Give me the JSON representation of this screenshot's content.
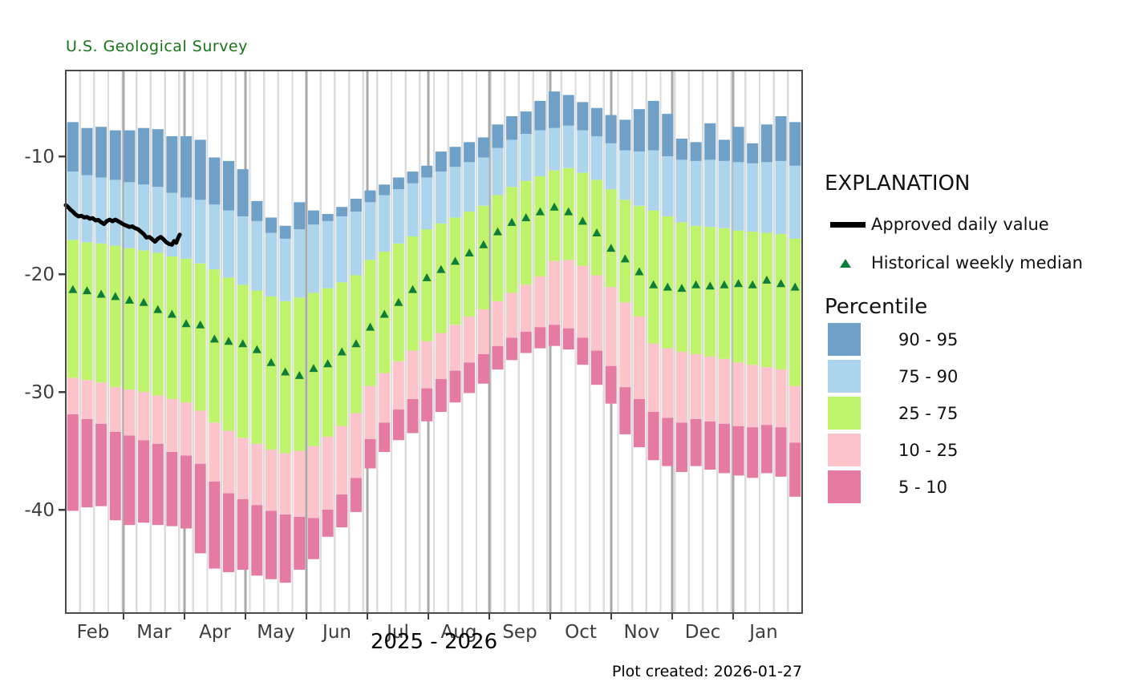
{
  "header": {
    "title": "U.S. Geological Survey"
  },
  "footer": {
    "created": "Plot created: 2026-01-27"
  },
  "axes": {
    "x_title": "2025 - 2026",
    "months": [
      "Feb",
      "Mar",
      "Apr",
      "May",
      "Jun",
      "Jul",
      "Aug",
      "Sep",
      "Oct",
      "Nov",
      "Dec",
      "Jan"
    ],
    "y_ticks": [
      -10,
      -20,
      -30,
      -40
    ]
  },
  "legend": {
    "title": "EXPLANATION",
    "approved_label": "Approved daily value",
    "median_label": "Historical weekly median",
    "percentile_title": "Percentile",
    "bands": [
      {
        "label": "90 - 95",
        "color": "#6EA0C8"
      },
      {
        "label": "75 - 90",
        "color": "#ACD4EC"
      },
      {
        "label": "25 - 75",
        "color": "#BFF36C"
      },
      {
        "label": "10 - 25",
        "color": "#FCC3CB"
      },
      {
        "label": "5 - 10",
        "color": "#E57BA3"
      }
    ]
  },
  "colors": {
    "band_90_95": "#6EA0C8",
    "band_75_90": "#ACD4EC",
    "band_25_75": "#BFF36C",
    "band_10_25": "#FCC3CB",
    "band_5_10": "#E57BA3",
    "median_triangle": "#0E7D3A",
    "approved_line": "#000000",
    "title_green": "#157415",
    "axis_text": "#3D3D3D",
    "grid_week": "#DCDCDC",
    "grid_month": "#A9A9A9",
    "plot_border": "#4A4A4A"
  },
  "chart_data": {
    "type": "bar",
    "subtype": "stacked-weekly-percentile-ranges",
    "title": "U.S. Geological Survey",
    "xlabel": "2025 - 2026",
    "ylabel": "",
    "ylim": [
      -48.8,
      -2.7
    ],
    "grid": "vertical-weekly-and-monthly",
    "legend_position": "right",
    "categories_months": [
      "Feb",
      "Mar",
      "Apr",
      "May",
      "Jun",
      "Jul",
      "Aug",
      "Sep",
      "Oct",
      "Nov",
      "Dec",
      "Jan"
    ],
    "week_format": "[p5, p10, p25, p75, p90, p95, weekly_median]",
    "weeks": [
      [
        -40.1,
        -31.9,
        -28.8,
        -17.1,
        -11.3,
        -7.1,
        -21.3
      ],
      [
        -39.8,
        -32.3,
        -29.0,
        -17.3,
        -11.6,
        -7.6,
        -21.4
      ],
      [
        -39.7,
        -32.7,
        -29.2,
        -17.4,
        -11.8,
        -7.5,
        -21.7
      ],
      [
        -40.9,
        -33.4,
        -29.6,
        -17.6,
        -12.0,
        -7.8,
        -21.9
      ],
      [
        -41.3,
        -33.7,
        -29.8,
        -17.8,
        -12.2,
        -7.8,
        -22.2
      ],
      [
        -41.1,
        -34.1,
        -30.0,
        -18.0,
        -12.4,
        -7.6,
        -22.4
      ],
      [
        -41.3,
        -34.4,
        -30.3,
        -18.2,
        -12.6,
        -7.7,
        -23.0
      ],
      [
        -41.4,
        -35.1,
        -30.6,
        -18.5,
        -13.1,
        -8.3,
        -23.4
      ],
      [
        -41.6,
        -35.4,
        -30.9,
        -18.7,
        -13.5,
        -8.3,
        -24.2
      ],
      [
        -43.7,
        -36.1,
        -31.6,
        -19.1,
        -13.7,
        -8.6,
        -24.3
      ],
      [
        -45.0,
        -37.6,
        -32.6,
        -19.6,
        -14.1,
        -10.1,
        -25.5
      ],
      [
        -45.3,
        -38.6,
        -33.3,
        -20.3,
        -14.6,
        -10.4,
        -25.7
      ],
      [
        -45.1,
        -39.1,
        -33.9,
        -20.9,
        -15.1,
        -11.1,
        -25.9
      ],
      [
        -45.6,
        -39.6,
        -34.4,
        -21.4,
        -15.5,
        -13.8,
        -26.4
      ],
      [
        -45.9,
        -40.1,
        -34.9,
        -21.9,
        -16.5,
        -15.2,
        -27.5
      ],
      [
        -46.2,
        -40.4,
        -35.2,
        -22.3,
        -17.0,
        -15.9,
        -28.3
      ],
      [
        -45.1,
        -40.6,
        -35.0,
        -22.0,
        -16.2,
        -13.9,
        -28.6
      ],
      [
        -44.2,
        -40.7,
        -34.6,
        -21.6,
        -15.8,
        -14.6,
        -28.0
      ],
      [
        -42.3,
        -40.0,
        -33.8,
        -21.2,
        -15.5,
        -14.9,
        -27.6
      ],
      [
        -41.5,
        -38.7,
        -32.9,
        -20.7,
        -15.1,
        -14.3,
        -26.6
      ],
      [
        -40.2,
        -37.3,
        -31.8,
        -20.1,
        -14.7,
        -13.6,
        -25.9
      ],
      [
        -36.5,
        -34.0,
        -29.5,
        -18.8,
        -13.9,
        -12.9,
        -24.5
      ],
      [
        -35.1,
        -32.6,
        -28.4,
        -18.1,
        -13.3,
        -12.4,
        -23.4
      ],
      [
        -34.1,
        -31.5,
        -27.4,
        -17.4,
        -12.8,
        -11.8,
        -22.4
      ],
      [
        -33.5,
        -30.6,
        -26.5,
        -16.8,
        -12.3,
        -11.3,
        -21.3
      ],
      [
        -32.5,
        -29.7,
        -25.7,
        -16.2,
        -11.8,
        -10.8,
        -20.3
      ],
      [
        -31.7,
        -28.9,
        -25.0,
        -15.7,
        -11.3,
        -9.6,
        -19.6
      ],
      [
        -30.9,
        -28.2,
        -24.3,
        -15.2,
        -10.9,
        -9.2,
        -18.9
      ],
      [
        -30.1,
        -27.5,
        -23.6,
        -14.7,
        -10.5,
        -8.8,
        -18.2
      ],
      [
        -29.3,
        -26.8,
        -23.0,
        -14.2,
        -10.1,
        -8.4,
        -17.5
      ],
      [
        -28.1,
        -26.1,
        -22.3,
        -13.3,
        -9.3,
        -7.3,
        -16.4
      ],
      [
        -27.3,
        -25.4,
        -21.6,
        -12.6,
        -8.6,
        -6.6,
        -15.6
      ],
      [
        -26.7,
        -24.9,
        -20.9,
        -12.1,
        -8.1,
        -6.2,
        -15.2
      ],
      [
        -26.3,
        -24.5,
        -20.2,
        -11.7,
        -7.8,
        -5.3,
        -14.7
      ],
      [
        -26.1,
        -24.3,
        -18.9,
        -11.2,
        -7.6,
        -4.5,
        -14.3
      ],
      [
        -26.4,
        -24.6,
        -18.8,
        -11.0,
        -7.4,
        -4.8,
        -14.7
      ],
      [
        -27.7,
        -25.4,
        -19.3,
        -11.4,
        -7.8,
        -5.4,
        -15.5
      ],
      [
        -29.4,
        -26.5,
        -20.1,
        -12.0,
        -8.3,
        -5.9,
        -16.5
      ],
      [
        -31.0,
        -27.8,
        -21.1,
        -12.8,
        -8.9,
        -6.5,
        -17.8
      ],
      [
        -33.6,
        -29.6,
        -22.4,
        -13.7,
        -9.5,
        -6.9,
        -18.7
      ],
      [
        -34.7,
        -30.6,
        -23.6,
        -14.2,
        -9.6,
        -6.0,
        -19.8
      ],
      [
        -35.8,
        -31.7,
        -25.9,
        -14.6,
        -9.5,
        -5.3,
        -20.9
      ],
      [
        -36.3,
        -32.2,
        -26.3,
        -15.1,
        -10.0,
        -6.4,
        -21.1
      ],
      [
        -36.8,
        -32.6,
        -26.6,
        -15.6,
        -10.3,
        -8.5,
        -21.2
      ],
      [
        -36.3,
        -32.3,
        -26.8,
        -15.9,
        -10.4,
        -8.8,
        -20.9
      ],
      [
        -36.6,
        -32.5,
        -27.0,
        -16.0,
        -10.3,
        -7.2,
        -21.0
      ],
      [
        -36.9,
        -32.7,
        -27.2,
        -16.1,
        -10.4,
        -8.6,
        -20.9
      ],
      [
        -37.1,
        -32.9,
        -27.5,
        -16.3,
        -10.5,
        -7.5,
        -20.8
      ],
      [
        -37.3,
        -33.0,
        -27.7,
        -16.4,
        -10.6,
        -8.9,
        -20.9
      ],
      [
        -36.9,
        -32.8,
        -27.9,
        -16.5,
        -10.5,
        -7.3,
        -20.5
      ],
      [
        -37.2,
        -33.0,
        -28.1,
        -16.6,
        -10.4,
        -6.6,
        -20.8
      ],
      [
        -38.9,
        -34.3,
        -29.5,
        -17.0,
        -10.8,
        -7.1,
        -21.1
      ]
    ],
    "approved_line_weeks_value": [
      [
        -0.5,
        -14.15
      ],
      [
        -0.35,
        -14.3
      ],
      [
        -0.2,
        -14.5
      ],
      [
        0.0,
        -14.7
      ],
      [
        0.2,
        -14.95
      ],
      [
        0.4,
        -15.1
      ],
      [
        0.6,
        -15.05
      ],
      [
        0.8,
        -15.2
      ],
      [
        1.0,
        -15.15
      ],
      [
        1.2,
        -15.3
      ],
      [
        1.4,
        -15.25
      ],
      [
        1.6,
        -15.45
      ],
      [
        1.8,
        -15.4
      ],
      [
        2.0,
        -15.6
      ],
      [
        2.2,
        -15.75
      ],
      [
        2.4,
        -15.5
      ],
      [
        2.6,
        -15.38
      ],
      [
        2.8,
        -15.52
      ],
      [
        3.0,
        -15.38
      ],
      [
        3.2,
        -15.52
      ],
      [
        3.4,
        -15.65
      ],
      [
        3.6,
        -15.8
      ],
      [
        3.8,
        -15.9
      ],
      [
        4.0,
        -16.0
      ],
      [
        4.2,
        -15.95
      ],
      [
        4.4,
        -16.1
      ],
      [
        4.6,
        -16.2
      ],
      [
        4.8,
        -16.4
      ],
      [
        5.0,
        -16.6
      ],
      [
        5.2,
        -16.9
      ],
      [
        5.4,
        -16.85
      ],
      [
        5.6,
        -17.05
      ],
      [
        5.8,
        -17.25
      ],
      [
        6.0,
        -17.0
      ],
      [
        6.2,
        -16.85
      ],
      [
        6.4,
        -17.05
      ],
      [
        6.6,
        -17.3
      ],
      [
        6.8,
        -17.45
      ],
      [
        7.0,
        -17.5
      ],
      [
        7.15,
        -17.2
      ],
      [
        7.3,
        -17.35
      ],
      [
        7.45,
        -16.9
      ],
      [
        7.55,
        -16.65
      ]
    ]
  }
}
